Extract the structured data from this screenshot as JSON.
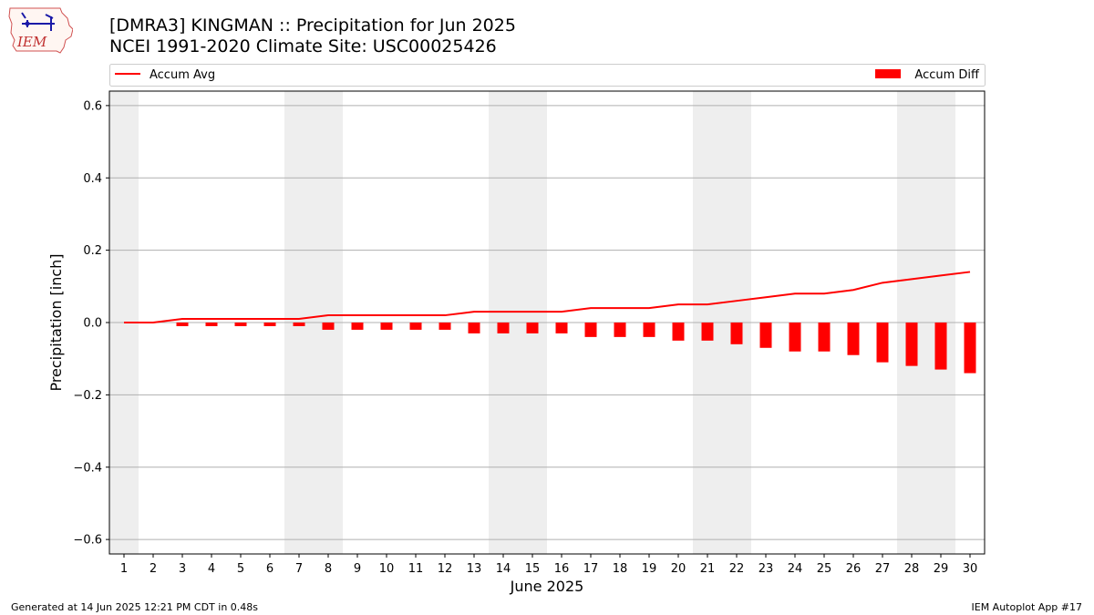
{
  "logo": {
    "text": "IEM"
  },
  "title": {
    "line1": "[DMRA3] KINGMAN :: Precipitation for Jun 2025",
    "line2": "NCEI 1991-2020 Climate Site: USC00025426"
  },
  "footer": {
    "left": "Generated at 14 Jun 2025 12:21 PM CDT in 0.48s",
    "right": "IEM Autoplot App #17"
  },
  "colors": {
    "accum_avg": "#ff0000",
    "accum_diff": "#ff0000",
    "weekend_shade": "#eeeeee",
    "grid": "#b0b0b0"
  },
  "chart_data": {
    "type": "bar",
    "xlabel": "June 2025",
    "ylabel": "Precipitation [inch]",
    "ylim": [
      -0.64,
      0.64
    ],
    "yticks": [
      -0.6,
      -0.4,
      -0.2,
      0.0,
      0.2,
      0.4,
      0.6
    ],
    "ytick_labels": [
      "−0.6",
      "−0.4",
      "−0.2",
      "0.0",
      "0.2",
      "0.4",
      "0.6"
    ],
    "grid": "horizontal",
    "legend": [
      {
        "name": "Accum Avg",
        "kind": "line",
        "placement": "top-left"
      },
      {
        "name": "Accum Diff",
        "kind": "bar",
        "placement": "top-right"
      }
    ],
    "x": [
      1,
      2,
      3,
      4,
      5,
      6,
      7,
      8,
      9,
      10,
      11,
      12,
      13,
      14,
      15,
      16,
      17,
      18,
      19,
      20,
      21,
      22,
      23,
      24,
      25,
      26,
      27,
      28,
      29,
      30
    ],
    "weekend_days": [
      1,
      7,
      8,
      14,
      15,
      21,
      22,
      28,
      29
    ],
    "series": [
      {
        "name": "Accum Avg",
        "kind": "line",
        "values": [
          0.0,
          0.0,
          0.01,
          0.01,
          0.01,
          0.01,
          0.01,
          0.02,
          0.02,
          0.02,
          0.02,
          0.02,
          0.03,
          0.03,
          0.03,
          0.03,
          0.04,
          0.04,
          0.04,
          0.05,
          0.05,
          0.06,
          0.07,
          0.08,
          0.08,
          0.09,
          0.11,
          0.12,
          0.13,
          0.14
        ]
      },
      {
        "name": "Accum Diff",
        "kind": "bar",
        "values": [
          0.0,
          0.0,
          -0.01,
          -0.01,
          -0.01,
          -0.01,
          -0.01,
          -0.02,
          -0.02,
          -0.02,
          -0.02,
          -0.02,
          -0.03,
          -0.03,
          -0.03,
          -0.03,
          -0.04,
          -0.04,
          -0.04,
          -0.05,
          -0.05,
          -0.06,
          -0.07,
          -0.08,
          -0.08,
          -0.09,
          -0.11,
          -0.12,
          -0.13,
          -0.14
        ]
      }
    ]
  }
}
